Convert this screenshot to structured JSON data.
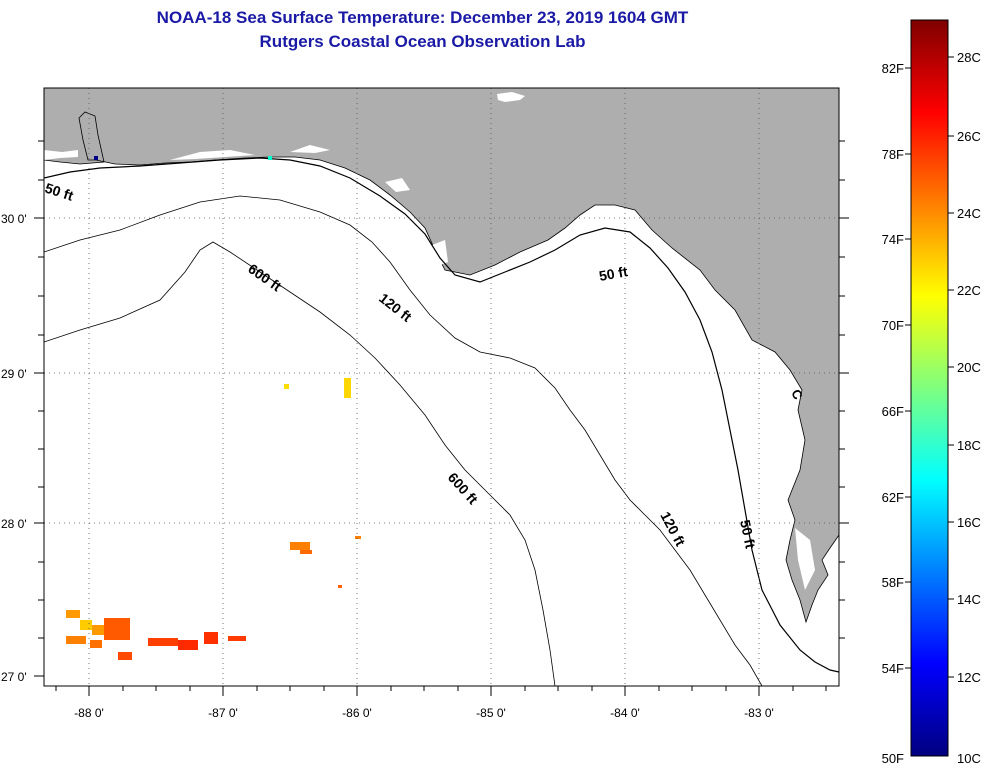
{
  "header": {
    "title": "NOAA-18 Sea Surface Temperature:  December 23, 2019 1604 GMT",
    "subtitle": "Rutgers Coastal Ocean Observation Lab"
  },
  "map": {
    "lat_labels": [
      "30 0'",
      "29 0'",
      "28 0'",
      "27 0'"
    ],
    "lon_labels": [
      "-88 0'",
      "-87 0'",
      "-86 0'",
      "-85 0'",
      "-84 0'",
      "-83 0'"
    ],
    "contour_labels": [
      {
        "id": "c50a",
        "text": "50 ft"
      },
      {
        "id": "c600a",
        "text": "600 ft"
      },
      {
        "id": "c120a",
        "text": "120 ft"
      },
      {
        "id": "c50b",
        "text": "50 ft"
      },
      {
        "id": "c600b",
        "text": "600 ft"
      },
      {
        "id": "c120b",
        "text": "120 ft"
      },
      {
        "id": "c50c",
        "text": "50 ft"
      }
    ],
    "colors": {
      "land": "#aeaeae",
      "water": "#ffffff",
      "title": "#1a1aa6"
    }
  },
  "colorbar": {
    "fahrenheit": [
      "82F",
      "78F",
      "74F",
      "70F",
      "66F",
      "62F",
      "58F",
      "54F",
      "50F"
    ],
    "celsius": [
      "28C",
      "26C",
      "24C",
      "22C",
      "20C",
      "18C",
      "16C",
      "14C",
      "12C",
      "10C"
    ],
    "stops": [
      "#00007f",
      "#0000ff",
      "#007fff",
      "#00ffff",
      "#7fff7f",
      "#ffff00",
      "#ff7f00",
      "#ff0000",
      "#7f0000"
    ]
  }
}
